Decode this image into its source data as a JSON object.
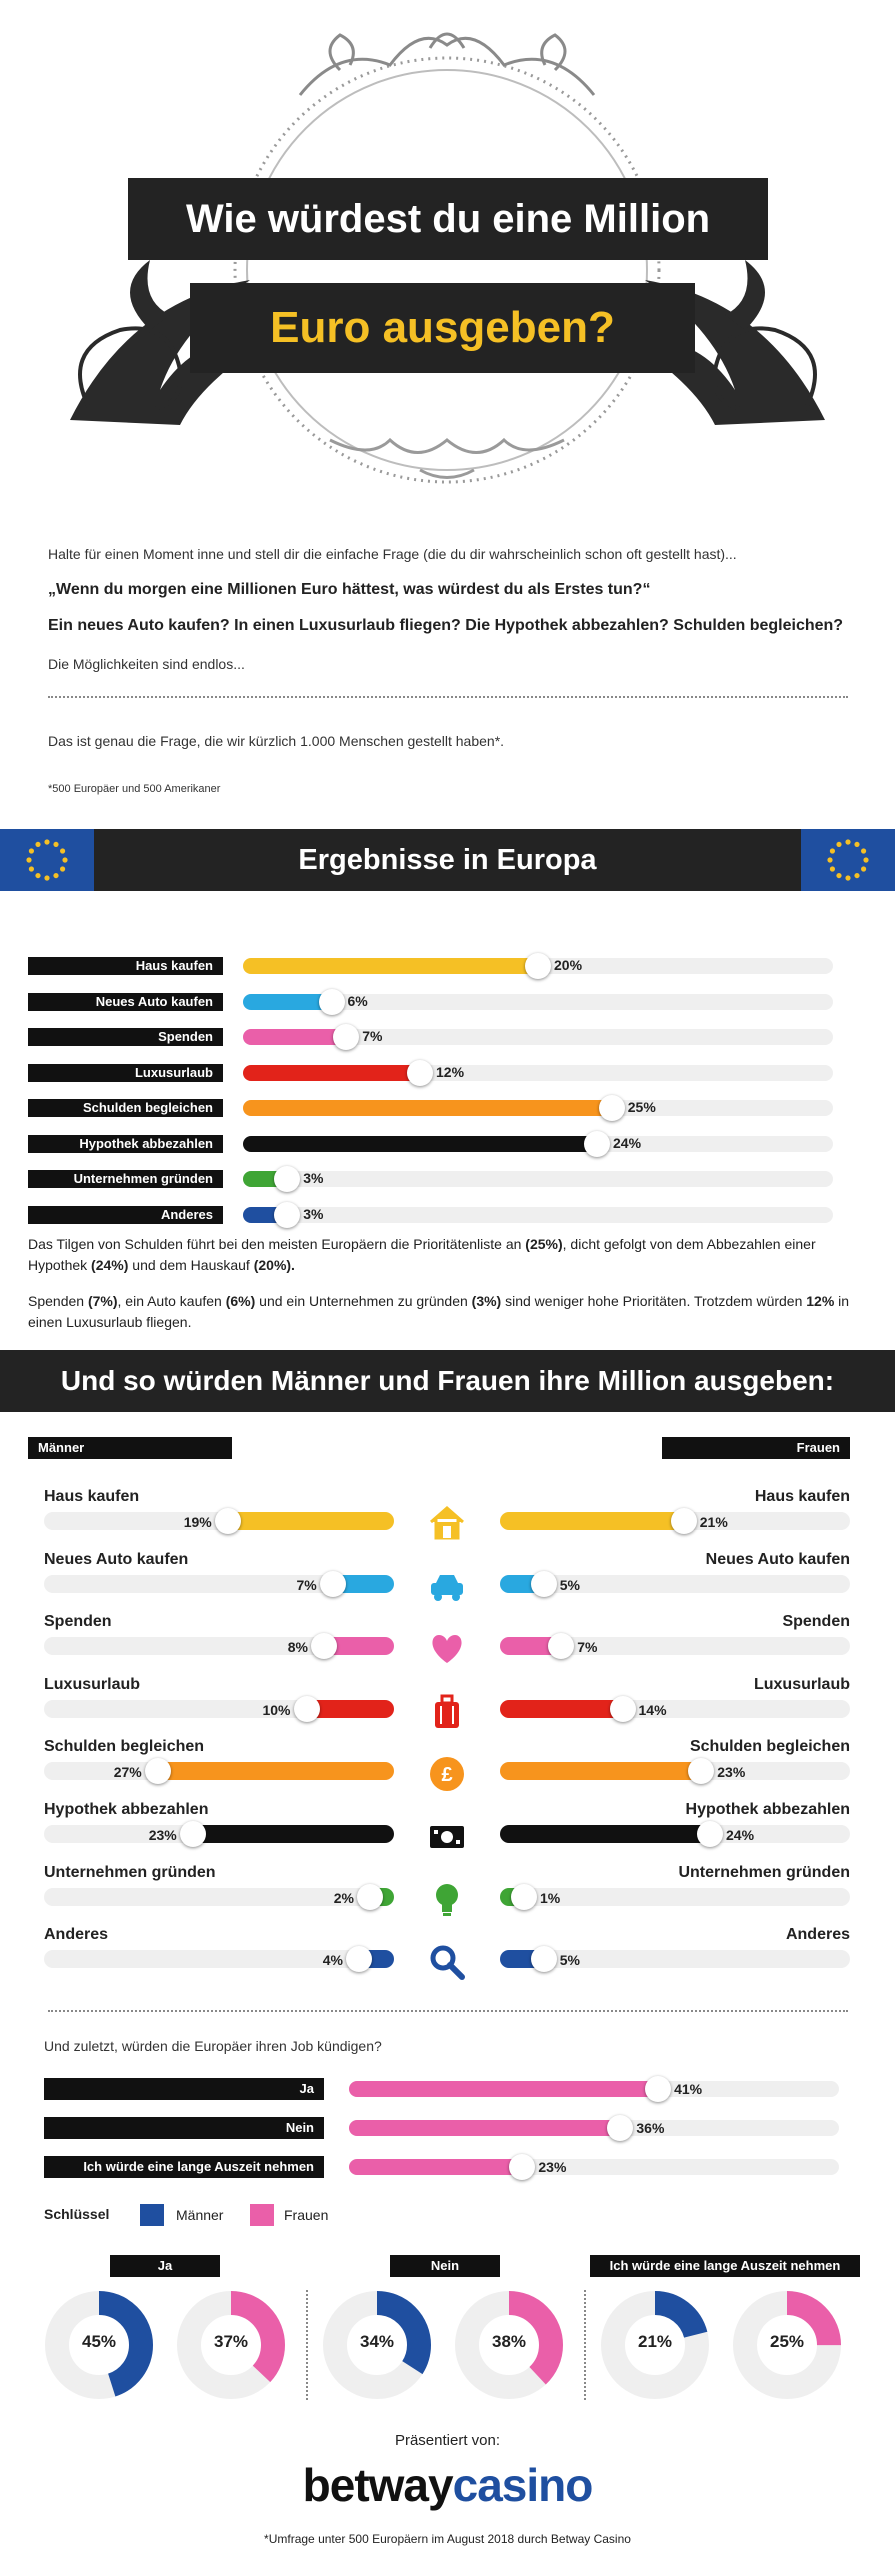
{
  "header": {
    "title_line1": "Wie würdest du eine Million",
    "title_line2": "Euro ausgeben?",
    "accent": "#f5c025"
  },
  "intro": {
    "p1": "Halte für einen Moment inne und stell dir die einfache Frage (die du dir wahrscheinlich schon oft gestellt hast)...",
    "q1": "„Wenn du morgen eine Millionen Euro hättest, was würdest du als Erstes tun?“",
    "q2": "Ein neues Auto kaufen? In einen Luxusurlaub fliegen? Die Hypothek abbezahlen? Schulden begleichen?",
    "p2": "Die Möglichkeiten sind endlos...",
    "p3": "Das ist genau die Frage, die wir kürzlich 1.000 Menschen gestellt haben*.",
    "footnote": "*500 Europäer und 500 Amerikaner"
  },
  "europe": {
    "title": "Ergebnisse in Europa",
    "rows": [
      {
        "label": "Haus kaufen",
        "value": 20,
        "display": "20%",
        "color": "#f5c025"
      },
      {
        "label": "Neues Auto kaufen",
        "value": 6,
        "display": "6%",
        "color": "#29a8e0"
      },
      {
        "label": "Spenden",
        "value": 7,
        "display": "7%",
        "color": "#ea5fa9"
      },
      {
        "label": "Luxusurlaub",
        "value": 12,
        "display": "12%",
        "color": "#e2231a"
      },
      {
        "label": "Schulden begleichen",
        "value": 25,
        "display": "25%",
        "color": "#f7941d"
      },
      {
        "label": "Hypothek abbezahlen",
        "value": 24,
        "display": "24%",
        "color": "#111111"
      },
      {
        "label": "Unternehmen gründen",
        "value": 3,
        "display": "3%",
        "color": "#3fa535"
      },
      {
        "label": "Anderes",
        "value": 3,
        "display": "3%",
        "color": "#1f4fa0"
      }
    ],
    "text1_a": "Das Tilgen von Schulden führt bei den meisten Europäern die Prioritätenliste an ",
    "text1_b": "(25%)",
    "text1_c": ", dicht gefolgt von dem Abbezahlen einer Hypothek ",
    "text1_d": "(24%)",
    "text1_e": " und dem Hauskauf ",
    "text1_f": "(20%).",
    "text2_a": "Spenden ",
    "text2_b": "(7%)",
    "text2_c": ", ein Auto kaufen ",
    "text2_d": "(6%)",
    "text2_e": " und ein Unternehmen zu gründen ",
    "text2_f": "(3%)",
    "text2_g": " sind weniger hohe Prioritäten. Trotzdem würden ",
    "text2_h": "12%",
    "text2_i": " in einen Luxusurlaub fliegen."
  },
  "gender": {
    "title": "Und so würden Männer und Frauen ihre Million ausgeben:",
    "men_label": "Männer",
    "women_label": "Frauen",
    "rows": [
      {
        "label": "Haus kaufen",
        "men": 19,
        "men_display": "19%",
        "women": 21,
        "women_display": "21%",
        "color": "#f5c025",
        "icon": "house-icon"
      },
      {
        "label": "Neues Auto kaufen",
        "men": 7,
        "men_display": "7%",
        "women": 5,
        "women_display": "5%",
        "color": "#29a8e0",
        "icon": "car-icon"
      },
      {
        "label": "Spenden",
        "men": 8,
        "men_display": "8%",
        "women": 7,
        "women_display": "7%",
        "color": "#ea5fa9",
        "icon": "heart-icon"
      },
      {
        "label": "Luxusurlaub",
        "men": 10,
        "men_display": "10%",
        "women": 14,
        "women_display": "14%",
        "color": "#e2231a",
        "icon": "suitcase-icon"
      },
      {
        "label": "Schulden begleichen",
        "men": 27,
        "men_display": "27%",
        "women": 23,
        "women_display": "23%",
        "color": "#f7941d",
        "icon": "pound-coin-icon"
      },
      {
        "label": "Hypothek abbezahlen",
        "men": 23,
        "men_display": "23%",
        "women": 24,
        "women_display": "24%",
        "color": "#111111",
        "icon": "cash-icon"
      },
      {
        "label": "Unternehmen gründen",
        "men": 2,
        "men_display": "2%",
        "women": 1,
        "women_display": "1%",
        "color": "#3fa535",
        "icon": "lightbulb-icon"
      },
      {
        "label": "Anderes",
        "men": 4,
        "men_display": "4%",
        "women": 5,
        "women_display": "5%",
        "color": "#1f4fa0",
        "icon": "search-icon"
      }
    ]
  },
  "job": {
    "question": "Und zuletzt, würden die Europäer ihren Job kündigen?",
    "rows": [
      {
        "label": "Ja",
        "value": 41,
        "display": "41%"
      },
      {
        "label": "Nein",
        "value": 36,
        "display": "36%"
      },
      {
        "label": "Ich würde eine lange Auszeit nehmen",
        "value": 23,
        "display": "23%"
      }
    ],
    "key_label": "Schlüssel",
    "key_men": "Männer",
    "key_women": "Frauen",
    "men_color": "#1f4fa0",
    "women_color": "#ea5fa9",
    "donuts": [
      {
        "label": "Ja",
        "men": 45,
        "men_display": "45%",
        "women": 37,
        "women_display": "37%"
      },
      {
        "label": "Nein",
        "men": 34,
        "men_display": "34%",
        "women": 38,
        "women_display": "38%"
      },
      {
        "label": "Ich würde eine lange Auszeit nehmen",
        "men": 21,
        "men_display": "21%",
        "women": 25,
        "women_display": "25%"
      }
    ]
  },
  "footer": {
    "presented": "Präsentiert von:",
    "brand_a": "betway",
    "brand_b": "casino",
    "note": "*Umfrage unter 500 Europäern im August 2018 durch Betway Casino"
  }
}
